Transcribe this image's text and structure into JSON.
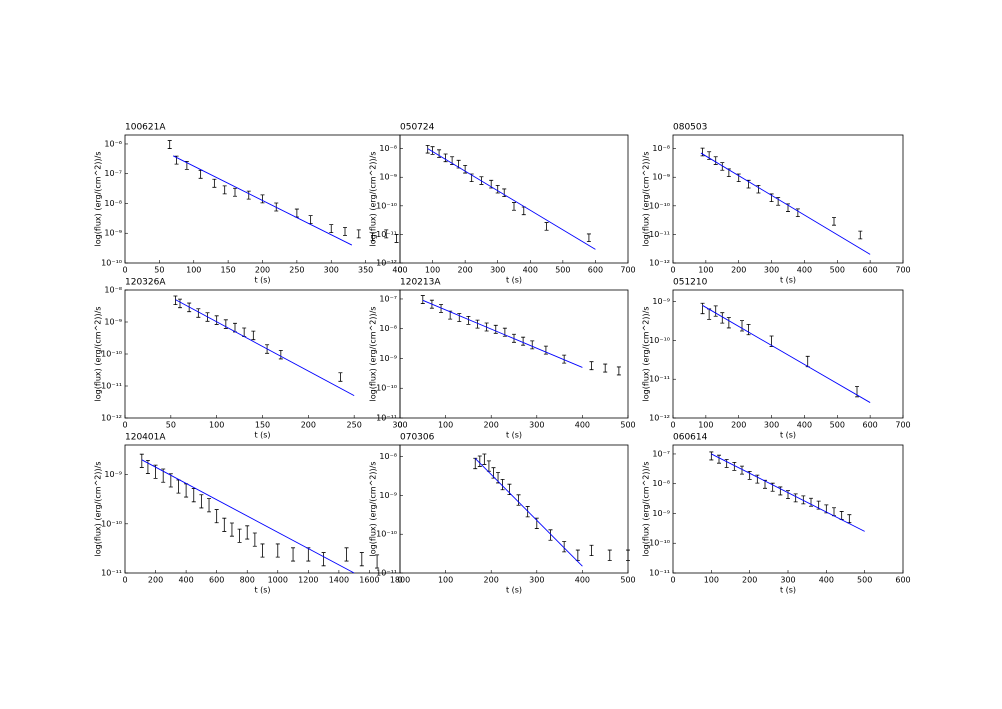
{
  "chart_data": [
    {
      "type": "scatter",
      "title": "100621A",
      "x_label": "t (s)",
      "y_label": "log(flux) (erg/(cm^2))/s",
      "log_y": true,
      "color": "#000000",
      "x": [
        65,
        75,
        90,
        110,
        130,
        145,
        160,
        180,
        200,
        220,
        250,
        270,
        300,
        320,
        340,
        360,
        380,
        395
      ],
      "values": [
        1e-06,
        3e-07,
        2e-07,
        1e-07,
        5e-08,
        3e-08,
        2.5e-08,
        2e-08,
        1.5e-08,
        8e-09,
        5e-09,
        3e-09,
        1.5e-09,
        1.2e-09,
        1e-09,
        8e-10,
        1e-09,
        7e-10
      ],
      "errors": [
        3e-07,
        9e-08,
        6e-08,
        3e-08,
        1.5e-08,
        9e-09,
        7.5e-09,
        6e-09,
        4.5e-09,
        2.4e-09,
        1.5e-09,
        9e-10,
        4.5e-10,
        3.6e-10,
        3e-10,
        2.4e-10,
        3e-10,
        2.1e-10
      ],
      "fit": {
        "x": [
          70,
          330
        ],
        "values": [
          4e-07,
          4e-10
        ],
        "color": "#0000ff"
      },
      "xlim": [
        0,
        400
      ],
      "xticks": [
        0,
        50,
        100,
        150,
        200,
        250,
        300,
        350,
        400
      ],
      "ylim": [
        1e-10,
        2e-06
      ],
      "yticks": [
        {
          "value": 1e-10,
          "label": "10⁻¹⁰"
        },
        {
          "value": 1e-09,
          "label": "10⁻⁹"
        },
        {
          "value": 1e-08,
          "label": "10⁻⁸"
        },
        {
          "value": 1e-07,
          "label": "10⁻⁷"
        },
        {
          "value": 1e-06,
          "label": "10⁻⁶"
        }
      ]
    },
    {
      "type": "scatter",
      "title": "050724",
      "x_label": "t (s)",
      "y_label": "log(flux) (erg/(cm^2))/s",
      "log_y": true,
      "color": "#000000",
      "x": [
        85,
        100,
        120,
        140,
        160,
        180,
        200,
        220,
        250,
        280,
        300,
        320,
        350,
        380,
        450,
        580
      ],
      "values": [
        1e-08,
        9e-09,
        7e-09,
        5e-09,
        4e-09,
        3e-09,
        2e-09,
        1e-09,
        8e-10,
        6e-10,
        4e-10,
        3e-10,
        1e-10,
        7e-11,
        2e-11,
        8e-12
      ],
      "errors": [
        3e-09,
        2.7e-09,
        2.1e-09,
        1.5e-09,
        1.2e-09,
        9e-10,
        6e-10,
        3e-10,
        2.4e-10,
        1.8e-10,
        1.2e-10,
        9e-11,
        3e-11,
        2.1e-11,
        6e-12,
        2.4e-12
      ],
      "fit": {
        "x": [
          85,
          600
        ],
        "values": [
          1e-08,
          3e-12
        ],
        "color": "#0000ff"
      },
      "xlim": [
        0,
        700
      ],
      "xticks": [
        0,
        100,
        200,
        300,
        400,
        500,
        600,
        700
      ],
      "ylim": [
        1e-12,
        3e-08
      ],
      "yticks": [
        {
          "value": 1e-12,
          "label": "10⁻¹²"
        },
        {
          "value": 1e-11,
          "label": "10⁻¹¹"
        },
        {
          "value": 1e-10,
          "label": "10⁻¹⁰"
        },
        {
          "value": 1e-09,
          "label": "10⁻⁹"
        },
        {
          "value": 1e-08,
          "label": "10⁻⁸"
        }
      ]
    },
    {
      "type": "scatter",
      "title": "080503",
      "x_label": "t (s)",
      "y_label": "log(flux) (erg/(cm^2))/s",
      "log_y": true,
      "color": "#000000",
      "x": [
        90,
        110,
        130,
        150,
        170,
        200,
        230,
        260,
        300,
        320,
        350,
        380,
        490,
        570
      ],
      "values": [
        8e-09,
        6e-09,
        4e-09,
        2.5e-09,
        1.5e-09,
        1e-09,
        6e-10,
        4e-10,
        2e-10,
        1.5e-10,
        9e-11,
        6e-11,
        3e-11,
        1e-11
      ],
      "errors": [
        2.4e-09,
        1.8e-09,
        1.2e-09,
        7.5e-10,
        4.5e-10,
        3e-10,
        1.8e-10,
        1.2e-10,
        6e-11,
        4.5e-11,
        2.7e-11,
        1.8e-11,
        9e-12,
        3e-12
      ],
      "fit": {
        "x": [
          85,
          600
        ],
        "values": [
          7e-09,
          2e-12
        ],
        "color": "#0000ff"
      },
      "xlim": [
        0,
        700
      ],
      "xticks": [
        0,
        100,
        200,
        300,
        400,
        500,
        600,
        700
      ],
      "ylim": [
        1e-12,
        3e-08
      ],
      "yticks": [
        {
          "value": 1e-12,
          "label": "10⁻¹²"
        },
        {
          "value": 1e-11,
          "label": "10⁻¹¹"
        },
        {
          "value": 1e-10,
          "label": "10⁻¹⁰"
        },
        {
          "value": 1e-09,
          "label": "10⁻⁹"
        },
        {
          "value": 1e-08,
          "label": "10⁻⁸"
        }
      ]
    },
    {
      "type": "scatter",
      "title": "120326A",
      "x_label": "t (s)",
      "y_label": "log(flux) (erg/(cm^2))/s",
      "log_y": true,
      "color": "#000000",
      "x": [
        55,
        60,
        70,
        80,
        90,
        100,
        110,
        120,
        130,
        140,
        155,
        170,
        235
      ],
      "values": [
        5e-09,
        4e-09,
        3e-09,
        2e-09,
        1.5e-09,
        1.2e-09,
        9e-10,
        7e-10,
        5e-10,
        4e-10,
        1.5e-10,
        1e-10,
        2e-11
      ],
      "errors": [
        1.5e-09,
        1.2e-09,
        9e-10,
        6e-10,
        4.5e-10,
        3.6e-10,
        2.7e-10,
        2.1e-10,
        1.5e-10,
        1.2e-10,
        4.5e-11,
        3e-11,
        6e-12
      ],
      "fit": {
        "x": [
          55,
          250
        ],
        "values": [
          5e-09,
          5e-12
        ],
        "color": "#0000ff"
      },
      "xlim": [
        0,
        300
      ],
      "xticks": [
        0,
        50,
        100,
        150,
        200,
        250,
        300
      ],
      "ylim": [
        1e-12,
        1e-08
      ],
      "yticks": [
        {
          "value": 1e-12,
          "label": "10⁻¹²"
        },
        {
          "value": 1e-11,
          "label": "10⁻¹¹"
        },
        {
          "value": 1e-10,
          "label": "10⁻¹⁰"
        },
        {
          "value": 1e-09,
          "label": "10⁻⁹"
        },
        {
          "value": 1e-08,
          "label": "10⁻⁸"
        }
      ]
    },
    {
      "type": "scatter",
      "title": "120213A",
      "x_label": "t (s)",
      "y_label": "log(flux) (erg/(cm^2))/s",
      "log_y": true,
      "color": "#000000",
      "x": [
        50,
        70,
        90,
        110,
        130,
        150,
        170,
        190,
        210,
        230,
        250,
        270,
        290,
        320,
        360,
        420,
        450,
        480
      ],
      "values": [
        1e-07,
        7e-08,
        5e-08,
        3e-08,
        2.5e-08,
        2e-08,
        1.5e-08,
        1.2e-08,
        1e-08,
        8e-09,
        5e-09,
        4e-09,
        3e-09,
        2e-09,
        1e-09,
        6e-10,
        5e-10,
        4e-10
      ],
      "errors": [
        3e-08,
        2.1e-08,
        1.5e-08,
        9e-09,
        7.5e-09,
        6e-09,
        4.5e-09,
        3.6e-09,
        3e-09,
        2.4e-09,
        1.5e-09,
        1.2e-09,
        9e-10,
        6e-10,
        3e-10,
        1.8e-10,
        1.5e-10,
        1.2e-10
      ],
      "fit": {
        "x": [
          50,
          400
        ],
        "values": [
          9e-08,
          5e-10
        ],
        "color": "#0000ff"
      },
      "xlim": [
        0,
        500
      ],
      "xticks": [
        0,
        100,
        200,
        300,
        400,
        500
      ],
      "ylim": [
        1e-11,
        2e-07
      ],
      "yticks": [
        {
          "value": 1e-11,
          "label": "10⁻¹¹"
        },
        {
          "value": 1e-10,
          "label": "10⁻¹⁰"
        },
        {
          "value": 1e-09,
          "label": "10⁻⁹"
        },
        {
          "value": 1e-08,
          "label": "10⁻⁸"
        },
        {
          "value": 1e-07,
          "label": "10⁻⁷"
        }
      ]
    },
    {
      "type": "scatter",
      "title": "051210",
      "x_label": "t (s)",
      "y_label": "log(flux) (erg/(cm^2))/s",
      "log_y": true,
      "color": "#000000",
      "x": [
        90,
        110,
        130,
        150,
        170,
        210,
        230,
        300,
        410,
        560
      ],
      "values": [
        7e-10,
        5e-10,
        6e-10,
        4e-10,
        3e-10,
        2.5e-10,
        2e-10,
        1e-10,
        3e-11,
        5e-12
      ],
      "errors": [
        2.1e-10,
        1.5e-10,
        1.8e-10,
        1.2e-10,
        9e-11,
        7.5e-11,
        6e-11,
        3e-11,
        9e-12,
        1.5e-12
      ],
      "fit": {
        "x": [
          90,
          600
        ],
        "values": [
          8e-10,
          2.5e-12
        ],
        "color": "#0000ff"
      },
      "xlim": [
        0,
        700
      ],
      "xticks": [
        0,
        100,
        200,
        300,
        400,
        500,
        600,
        700
      ],
      "ylim": [
        1e-12,
        2e-09
      ],
      "yticks": [
        {
          "value": 1e-12,
          "label": "10⁻¹²"
        },
        {
          "value": 1e-11,
          "label": "10⁻¹¹"
        },
        {
          "value": 1e-10,
          "label": "10⁻¹⁰"
        },
        {
          "value": 1e-09,
          "label": "10⁻⁹"
        }
      ]
    },
    {
      "type": "scatter",
      "title": "120401A",
      "x_label": "t (s)",
      "y_label": "log(flux) (erg/(cm^2))/s",
      "log_y": true,
      "color": "#000000",
      "x": [
        110,
        150,
        200,
        250,
        300,
        350,
        400,
        450,
        500,
        550,
        600,
        650,
        700,
        750,
        800,
        850,
        900,
        1000,
        1100,
        1200,
        1300,
        1450,
        1550,
        1650
      ],
      "values": [
        2e-09,
        1.5e-09,
        1.2e-09,
        1e-09,
        8e-10,
        6e-10,
        5e-10,
        4e-10,
        3e-10,
        2.5e-10,
        1.5e-10,
        1e-10,
        8e-11,
        6e-11,
        7e-11,
        5e-11,
        3e-11,
        3e-11,
        2.5e-11,
        2.5e-11,
        2e-11,
        2.5e-11,
        2e-11,
        1.8e-11
      ],
      "errors": [
        6e-10,
        4.5e-10,
        3.6e-10,
        3e-10,
        2.4e-10,
        1.8e-10,
        1.5e-10,
        1.2e-10,
        9e-11,
        7.5e-11,
        4.5e-11,
        3e-11,
        2.4e-11,
        1.8e-11,
        2.1e-11,
        1.5e-11,
        9e-12,
        9e-12,
        7.5e-12,
        7.5e-12,
        6e-12,
        7.5e-12,
        6e-12,
        5.4e-12
      ],
      "fit": {
        "x": [
          110,
          1500
        ],
        "values": [
          2e-09,
          1e-11
        ],
        "color": "#0000ff"
      },
      "xlim": [
        0,
        1800
      ],
      "xticks": [
        0,
        200,
        400,
        600,
        800,
        1000,
        1200,
        1400,
        1600,
        1800
      ],
      "ylim": [
        1e-11,
        4e-09
      ],
      "yticks": [
        {
          "value": 1e-11,
          "label": "10⁻¹¹"
        },
        {
          "value": 1e-10,
          "label": "10⁻¹⁰"
        },
        {
          "value": 1e-09,
          "label": "10⁻⁹"
        }
      ]
    },
    {
      "type": "scatter",
      "title": "070306",
      "x_label": "t (s)",
      "y_label": "log(flux) (erg/(cm^2))/s",
      "log_y": true,
      "color": "#000000",
      "x": [
        165,
        175,
        185,
        195,
        205,
        215,
        225,
        240,
        260,
        280,
        300,
        330,
        360,
        390,
        420,
        460,
        500
      ],
      "values": [
        7e-09,
        8e-09,
        9e-09,
        6e-09,
        4e-09,
        3e-09,
        2e-09,
        1.5e-09,
        8e-10,
        4e-10,
        2e-10,
        1e-10,
        5e-11,
        3e-11,
        4e-11,
        3e-11,
        3e-11
      ],
      "errors": [
        2.1e-09,
        2.4e-09,
        2.7e-09,
        1.8e-09,
        1.2e-09,
        9e-10,
        6e-10,
        4.5e-10,
        2.4e-10,
        1.2e-10,
        6e-11,
        3e-11,
        1.5e-11,
        9e-12,
        1.2e-11,
        9e-12,
        9e-12
      ],
      "fit": {
        "x": [
          165,
          400
        ],
        "values": [
          9e-09,
          1.5e-11
        ],
        "color": "#0000ff"
      },
      "xlim": [
        0,
        500
      ],
      "xticks": [
        0,
        100,
        200,
        300,
        400,
        500
      ],
      "ylim": [
        1e-11,
        2e-08
      ],
      "yticks": [
        {
          "value": 1e-11,
          "label": "10⁻¹¹"
        },
        {
          "value": 1e-10,
          "label": "10⁻¹⁰"
        },
        {
          "value": 1e-09,
          "label": "10⁻⁹"
        },
        {
          "value": 1e-08,
          "label": "10⁻⁸"
        }
      ]
    },
    {
      "type": "scatter",
      "title": "060614",
      "x_label": "t (s)",
      "y_label": "log(flux) (erg/(cm^2))/s",
      "log_y": true,
      "color": "#000000",
      "x": [
        100,
        120,
        140,
        160,
        180,
        200,
        220,
        240,
        260,
        280,
        300,
        320,
        340,
        360,
        380,
        400,
        420,
        440,
        460
      ],
      "values": [
        9e-08,
        7e-08,
        5e-08,
        4e-08,
        3e-08,
        2e-08,
        1.5e-08,
        1e-08,
        8e-09,
        6e-09,
        4.5e-09,
        3.5e-09,
        3e-09,
        2.5e-09,
        2e-09,
        1.5e-09,
        1.2e-09,
        9e-10,
        7e-10
      ],
      "errors": [
        2.7e-08,
        2.1e-08,
        1.5e-08,
        1.2e-08,
        9e-09,
        6e-09,
        4.5e-09,
        3e-09,
        2.4e-09,
        1.8e-09,
        1.35e-09,
        1.05e-09,
        9e-10,
        7.5e-10,
        6e-10,
        4.5e-10,
        3.6e-10,
        2.7e-10,
        2.1e-10
      ],
      "fit": {
        "x": [
          100,
          500
        ],
        "values": [
          1e-07,
          2.5e-10
        ],
        "color": "#0000ff"
      },
      "xlim": [
        0,
        600
      ],
      "xticks": [
        0,
        100,
        200,
        300,
        400,
        500,
        600
      ],
      "ylim": [
        1e-11,
        2e-07
      ],
      "yticks": [
        {
          "value": 1e-11,
          "label": "10⁻¹¹"
        },
        {
          "value": 1e-10,
          "label": "10⁻¹⁰"
        },
        {
          "value": 1e-09,
          "label": "10⁻⁹"
        },
        {
          "value": 1e-08,
          "label": "10⁻⁸"
        },
        {
          "value": 1e-07,
          "label": "10⁻⁷"
        }
      ]
    }
  ]
}
